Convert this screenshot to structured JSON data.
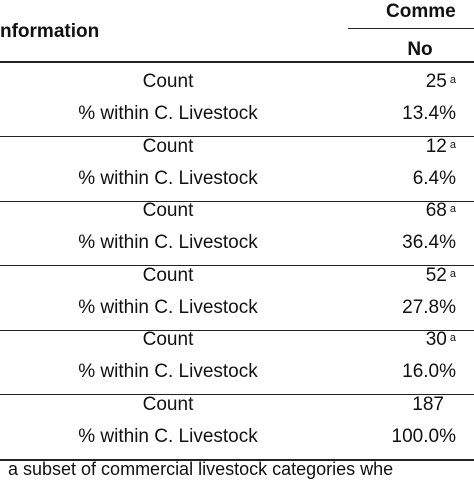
{
  "header": {
    "title": "nformation",
    "group": "Comme",
    "column": "No"
  },
  "table": {
    "rows": [
      {
        "label": "Count",
        "value": "25",
        "note": "a"
      },
      {
        "label": "% within C. Livestock",
        "value": "13.4%"
      },
      {
        "label": "Count",
        "value": "12",
        "note": "a"
      },
      {
        "label": "% within C. Livestock",
        "value": "6.4%"
      },
      {
        "label": "Count",
        "value": "68",
        "note": "a"
      },
      {
        "label": "% within C. Livestock",
        "value": "36.4%"
      },
      {
        "label": "Count",
        "value": "52",
        "note": "a"
      },
      {
        "label": "% within C. Livestock",
        "value": "27.8%"
      },
      {
        "label": "Count",
        "value": "30",
        "note": "a"
      },
      {
        "label": "% within C. Livestock",
        "value": "16.0%"
      },
      {
        "label": "Count",
        "value": "187"
      },
      {
        "label": "% within C. Livestock",
        "value": "100.0%"
      }
    ]
  },
  "footnote": "a subset of commercial livestock categories whe"
}
